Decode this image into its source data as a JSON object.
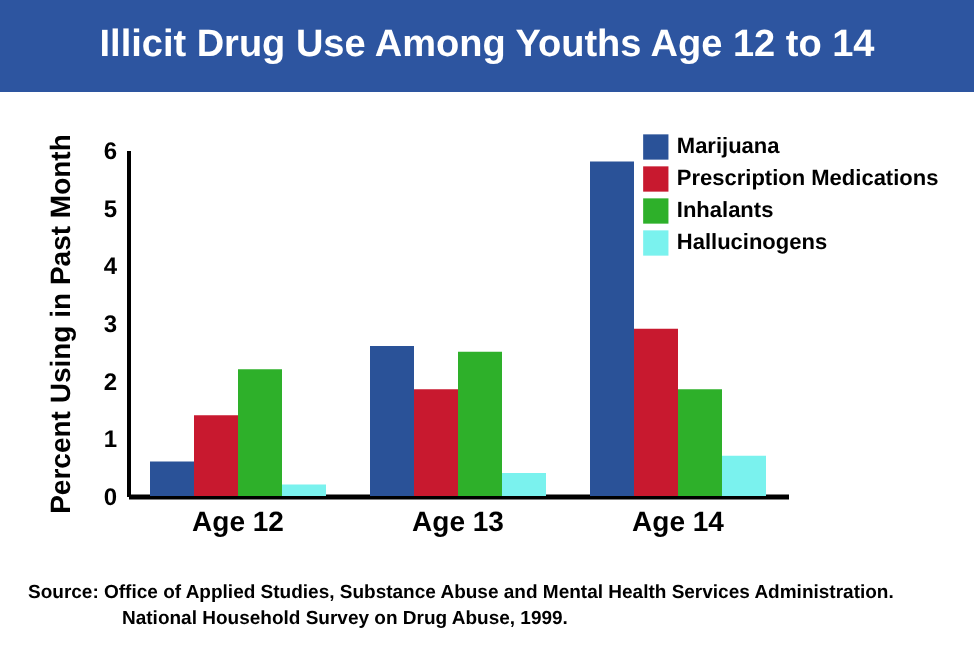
{
  "chart_data": {
    "type": "bar",
    "title": "Illicit Drug Use Among Youths Age 12 to 14",
    "ylabel": "Percent Using in Past Month",
    "categories": [
      "Age 12",
      "Age 13",
      "Age 14"
    ],
    "series": [
      {
        "name": "Marijuana",
        "color": "#2a5298",
        "values": [
          0.6,
          2.6,
          5.8
        ]
      },
      {
        "name": "Prescription Medications",
        "color": "#c8192f",
        "values": [
          1.4,
          1.85,
          2.9
        ]
      },
      {
        "name": "Inhalants",
        "color": "#2eb02a",
        "values": [
          2.2,
          2.5,
          1.85
        ]
      },
      {
        "name": "Hallucinogens",
        "color": "#7af2ee",
        "values": [
          0.2,
          0.4,
          0.7
        ]
      }
    ],
    "ylim": [
      0,
      6
    ],
    "yticks": [
      0,
      1,
      2,
      3,
      4,
      5,
      6
    ],
    "grid": false,
    "legend": "top right",
    "annotations": [
      "Source: Office of Applied Studies, Substance Abuse and Mental Health Services Administration.",
      "National Household Survey on Drug Abuse, 1999."
    ]
  }
}
